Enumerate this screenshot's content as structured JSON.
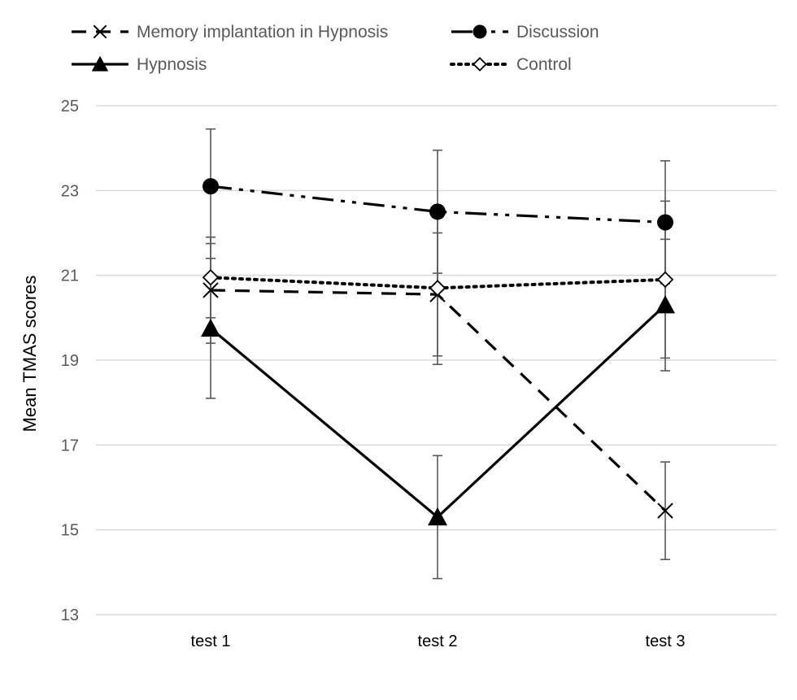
{
  "chart_data": {
    "type": "line",
    "title": "",
    "xlabel": "",
    "ylabel": "Mean TMAS scores",
    "categories": [
      "test 1",
      "test 2",
      "test 3"
    ],
    "ylim": [
      13,
      25
    ],
    "yticks": [
      13,
      15,
      17,
      19,
      21,
      23,
      25
    ],
    "grid": "horizontal",
    "legend": "top",
    "series": [
      {
        "name": "Memory implantation in Hypnosis",
        "values": [
          20.65,
          20.55,
          15.45
        ],
        "errors": [
          1.25,
          1.45,
          1.15
        ],
        "line_style": "dashed",
        "marker": "x",
        "color": "#000000"
      },
      {
        "name": "Discussion",
        "values": [
          23.1,
          22.5,
          22.25
        ],
        "errors": [
          1.35,
          1.45,
          1.45
        ],
        "line_style": "dash-dot-dot",
        "marker": "filled-circle",
        "color": "#000000"
      },
      {
        "name": "Hypnosis",
        "values": [
          19.75,
          15.3,
          20.3
        ],
        "errors": [
          1.65,
          1.45,
          1.55
        ],
        "line_style": "solid",
        "marker": "filled-triangle",
        "color": "#000000"
      },
      {
        "name": "Control",
        "values": [
          20.95,
          20.7,
          20.9
        ],
        "errors": [
          0.95,
          1.8,
          1.85
        ],
        "line_style": "dotted",
        "marker": "open-diamond",
        "color": "#000000"
      }
    ],
    "errorbar_color": "#595959",
    "gridline_color": "#d9d9d9"
  }
}
